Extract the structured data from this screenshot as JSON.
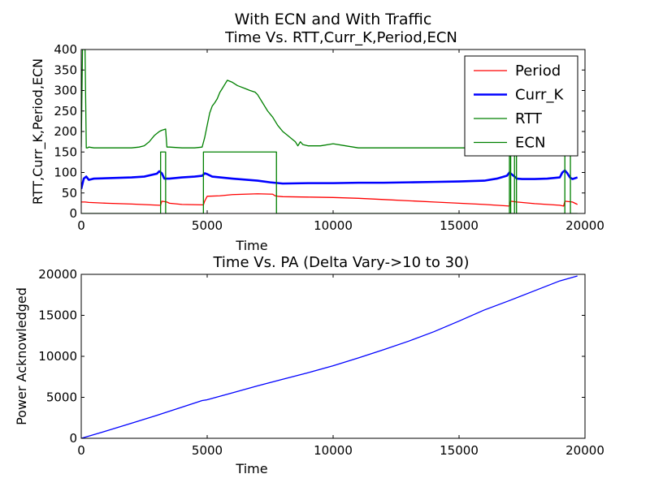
{
  "figure": {
    "suptitle": "With ECN and With Traffic"
  },
  "chart_data": [
    {
      "type": "line",
      "title": "Time Vs. RTT,Curr_K,Period,ECN",
      "xlabel": "Time",
      "ylabel": "RTT,Curr_K,Period,ECN",
      "xlim": [
        0,
        20000
      ],
      "ylim": [
        0,
        400
      ],
      "xticks": [
        "0",
        "5000",
        "10000",
        "15000",
        "20000"
      ],
      "yticks": [
        "0",
        "50",
        "100",
        "150",
        "200",
        "250",
        "300",
        "350",
        "400"
      ],
      "legend_position": "top-right",
      "series": [
        {
          "name": "Period",
          "color": "#ff0000",
          "x": [
            0,
            150,
            300,
            1000,
            2000,
            3100,
            3150,
            3200,
            3400,
            3500,
            4000,
            4800,
            4850,
            4900,
            4950,
            5000,
            5500,
            6000,
            7000,
            7600,
            7700,
            7800,
            8000,
            9000,
            10000,
            11000,
            12000,
            13000,
            14000,
            15000,
            16000,
            17000,
            17050,
            17300,
            18000,
            19000,
            19150,
            19200,
            19500,
            19700
          ],
          "y": [
            28,
            28,
            27,
            25,
            23,
            20,
            20,
            30,
            28,
            25,
            22,
            21,
            21,
            30,
            36,
            42,
            43,
            46,
            48,
            47,
            43,
            42,
            41,
            40,
            39,
            37,
            34,
            31,
            28,
            25,
            22,
            18,
            30,
            28,
            24,
            20,
            18,
            30,
            28,
            22
          ]
        },
        {
          "name": "Curr_K",
          "color": "#0000ff",
          "x": [
            0,
            100,
            200,
            300,
            500,
            1000,
            2000,
            2500,
            3000,
            3100,
            3200,
            3300,
            3500,
            4000,
            4500,
            4800,
            4900,
            5000,
            5200,
            6000,
            7000,
            7500,
            8000,
            9000,
            10000,
            11000,
            12000,
            13000,
            14000,
            15000,
            16000,
            16500,
            16900,
            17000,
            17100,
            17300,
            17500,
            18000,
            18500,
            19000,
            19100,
            19200,
            19300,
            19400,
            19500,
            19700
          ],
          "y": [
            60,
            85,
            90,
            82,
            85,
            86,
            88,
            90,
            97,
            103,
            98,
            85,
            85,
            88,
            90,
            92,
            98,
            96,
            90,
            85,
            80,
            76,
            73,
            74,
            74,
            75,
            75,
            76,
            77,
            78,
            80,
            85,
            92,
            100,
            95,
            85,
            84,
            84,
            85,
            88,
            100,
            105,
            98,
            88,
            84,
            88
          ]
        },
        {
          "name": "RTT",
          "color": "#008000",
          "x": [
            0,
            50,
            80,
            120,
            150,
            200,
            250,
            300,
            500,
            1000,
            1500,
            2000,
            2300,
            2500,
            2700,
            2900,
            3100,
            3200,
            3300,
            3350,
            3400,
            3500,
            4000,
            4500,
            4800,
            4900,
            5000,
            5100,
            5200,
            5300,
            5400,
            5500,
            5600,
            5700,
            5800,
            6000,
            6200,
            6500,
            6700,
            6900,
            7000,
            7200,
            7400,
            7600,
            7800,
            8000,
            8200,
            8400,
            8500,
            8600,
            8700,
            8800,
            9000,
            9500,
            10000,
            10500,
            11000,
            12000,
            13000,
            14000,
            15000,
            16000,
            17000,
            17050,
            17100,
            17200,
            17300,
            18000,
            19000,
            19050,
            19100,
            19200,
            19300,
            19500,
            19700
          ],
          "y": [
            162,
            400,
            400,
            400,
            400,
            160,
            160,
            162,
            160,
            160,
            160,
            160,
            162,
            165,
            175,
            190,
            200,
            203,
            205,
            206,
            162,
            162,
            160,
            160,
            162,
            185,
            215,
            245,
            262,
            270,
            280,
            295,
            305,
            315,
            325,
            320,
            312,
            305,
            300,
            296,
            290,
            270,
            250,
            235,
            215,
            200,
            190,
            180,
            175,
            165,
            175,
            168,
            165,
            165,
            170,
            165,
            160,
            160,
            160,
            160,
            160,
            160,
            160,
            180,
            165,
            160,
            160,
            160,
            160,
            175,
            162,
            160,
            160,
            160,
            160
          ]
        },
        {
          "name": "ECN",
          "color": "#008000",
          "x": [
            0,
            3150,
            3151,
            3350,
            3351,
            4850,
            4851,
            7750,
            7751,
            17000,
            17001,
            17050,
            17051,
            17200,
            17201,
            17280,
            17281,
            19200,
            19201,
            19420,
            19421,
            19700
          ],
          "y": [
            0,
            0,
            150,
            150,
            0,
            0,
            150,
            150,
            0,
            0,
            150,
            150,
            0,
            0,
            150,
            150,
            0,
            0,
            150,
            150,
            0,
            0
          ]
        }
      ]
    },
    {
      "type": "line",
      "title": "Time Vs. PA (Delta Vary->10 to 30)",
      "xlabel": "Time",
      "ylabel": "Power Acknowledged",
      "xlim": [
        0,
        20000
      ],
      "ylim": [
        0,
        20000
      ],
      "xticks": [
        "0",
        "5000",
        "10000",
        "15000",
        "20000"
      ],
      "yticks": [
        "0",
        "5000",
        "10000",
        "15000",
        "20000"
      ],
      "legend_position": "none",
      "series": [
        {
          "color": "#0000ff",
          "x": [
            0,
            1000,
            2000,
            3000,
            4000,
            4800,
            5000,
            6000,
            7000,
            8000,
            9000,
            10000,
            11000,
            12000,
            13000,
            14000,
            15000,
            16000,
            17000,
            18000,
            19000,
            19700
          ],
          "y": [
            0,
            900,
            1850,
            2800,
            3800,
            4600,
            4700,
            5550,
            6400,
            7200,
            8000,
            8850,
            9800,
            10800,
            11850,
            13000,
            14300,
            15650,
            16800,
            18000,
            19200,
            19800
          ]
        }
      ]
    }
  ]
}
